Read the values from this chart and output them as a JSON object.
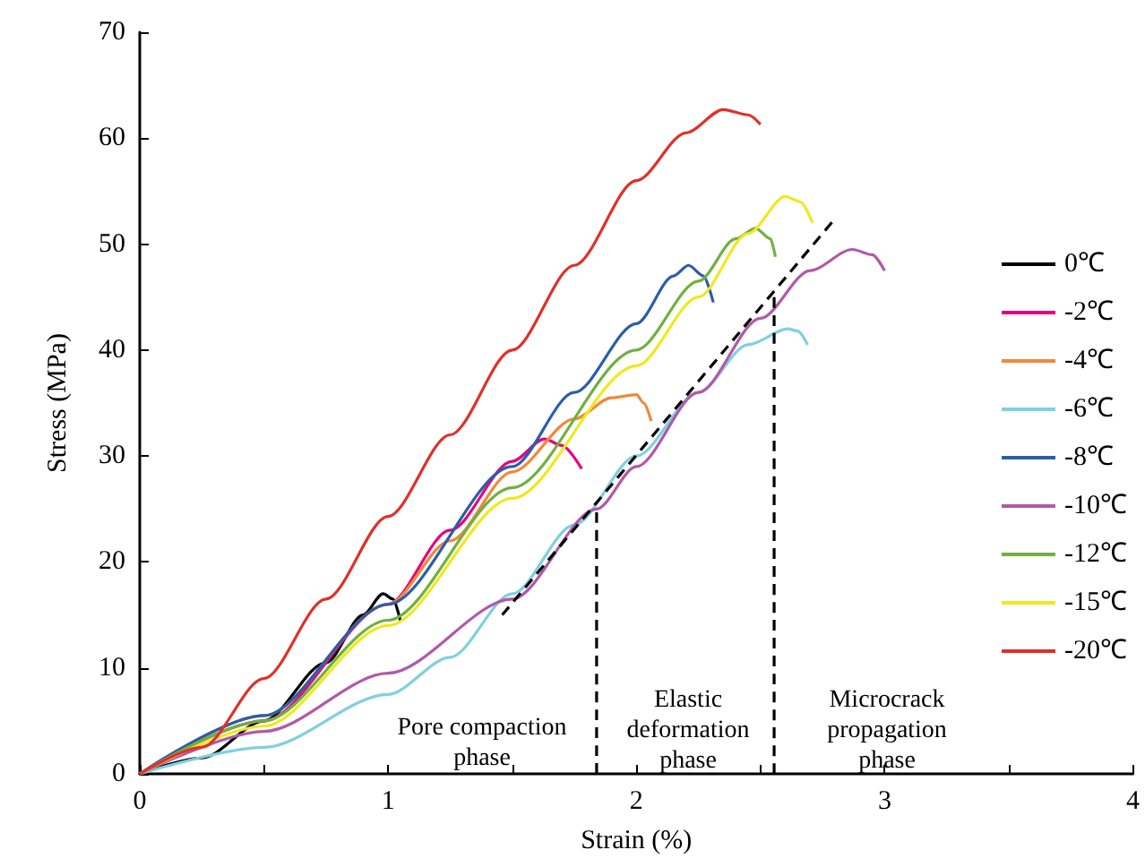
{
  "chart_data": {
    "type": "line",
    "xlabel": "Strain (%)",
    "ylabel": "Stress (MPa)",
    "xlim": [
      0,
      4
    ],
    "xticks": [
      0,
      {
        "value": 0.5,
        "label": null
      },
      1,
      {
        "value": 1.5,
        "label": null
      },
      2,
      {
        "value": 2.5,
        "label": null
      },
      3,
      {
        "value": 3.5,
        "label": null
      },
      4
    ],
    "ylim": [
      0,
      70
    ],
    "yticks": [
      0,
      10,
      20,
      30,
      40,
      50,
      60,
      70
    ],
    "grid": false,
    "legend": "right",
    "marker": "none",
    "line_style": "solid",
    "series": [
      {
        "name": "0℃",
        "color": "#000000",
        "x": [
          0,
          0.25,
          0.5,
          0.75,
          0.9,
          0.98,
          1.02,
          1.05
        ],
        "values": [
          0,
          1.5,
          5,
          10.5,
          15,
          17,
          16.5,
          14.4
        ]
      },
      {
        "name": "-2℃",
        "color": "#e6007e",
        "x": [
          0,
          0.5,
          1,
          1.25,
          1.5,
          1.63,
          1.7,
          1.78
        ],
        "values": [
          0,
          5,
          16,
          23,
          29.5,
          31.6,
          31,
          28.8
        ]
      },
      {
        "name": "-4℃",
        "color": "#f0883a",
        "x": [
          0,
          0.5,
          1,
          1.25,
          1.5,
          1.75,
          1.9,
          2,
          2.03,
          2.06
        ],
        "values": [
          0,
          5.5,
          16,
          22,
          28.5,
          33.5,
          35.5,
          35.8,
          35,
          33.3
        ]
      },
      {
        "name": "-6℃",
        "color": "#7fd0e0",
        "x": [
          0,
          0.5,
          1,
          1.25,
          1.5,
          1.75,
          2,
          2.25,
          2.45,
          2.61,
          2.65,
          2.69
        ],
        "values": [
          0,
          2.5,
          7.5,
          11,
          17,
          23.5,
          30,
          36,
          40.5,
          42,
          41.8,
          40.5
        ]
      },
      {
        "name": "-8℃",
        "color": "#2b5ea8",
        "x": [
          0,
          0.5,
          1,
          1.5,
          1.75,
          2,
          2.15,
          2.21,
          2.27,
          2.31
        ],
        "values": [
          0,
          5.5,
          16,
          29,
          36,
          42.5,
          47,
          48,
          47,
          44.5
        ]
      },
      {
        "name": "-10℃",
        "color": "#b05aa8",
        "x": [
          0,
          0.5,
          1,
          1.5,
          1.84,
          2,
          2.25,
          2.5,
          2.7,
          2.87,
          2.95,
          3.0
        ],
        "values": [
          0,
          4,
          9.5,
          16.5,
          25,
          29,
          36,
          43,
          47.5,
          49.5,
          49,
          47.5
        ]
      },
      {
        "name": "-12℃",
        "color": "#70b040",
        "x": [
          0,
          0.5,
          1,
          1.5,
          2,
          2.25,
          2.4,
          2.48,
          2.54,
          2.56
        ],
        "values": [
          0,
          5,
          14.5,
          27,
          40,
          46.5,
          50.5,
          51.5,
          50.5,
          48.8
        ]
      },
      {
        "name": "-15℃",
        "color": "#f0e820",
        "x": [
          0,
          0.5,
          1,
          1.5,
          2,
          2.25,
          2.45,
          2.6,
          2.66,
          2.71
        ],
        "values": [
          0,
          4.5,
          14,
          26,
          38.5,
          45,
          51,
          54.5,
          54,
          52
        ]
      },
      {
        "name": "-20℃",
        "color": "#e0302a",
        "x": [
          0,
          0.25,
          0.5,
          0.75,
          1,
          1.25,
          1.5,
          1.75,
          2,
          2.2,
          2.35,
          2.45,
          2.5
        ],
        "values": [
          0,
          2.5,
          9,
          16.5,
          24.3,
          32,
          40,
          48,
          56,
          60.5,
          62.7,
          62.2,
          61.3
        ]
      },
      {
        "color": "#000000",
        "line_style": "dashed",
        "x": [
          1.46,
          2.8
        ],
        "values": [
          15,
          52.4
        ]
      },
      {
        "color": "#000000",
        "line_style": "dashed",
        "x": [
          1.84,
          1.84
        ],
        "values": [
          0,
          25
        ]
      },
      {
        "color": "#000000",
        "line_style": "dashed",
        "x": [
          2.555,
          2.555
        ],
        "values": [
          0,
          45.3
        ]
      }
    ],
    "annotations": [
      "Pore compaction\nphase",
      "Elastic\ndeformation\nphase",
      "Microcrack\npropagation\nphase"
    ]
  }
}
